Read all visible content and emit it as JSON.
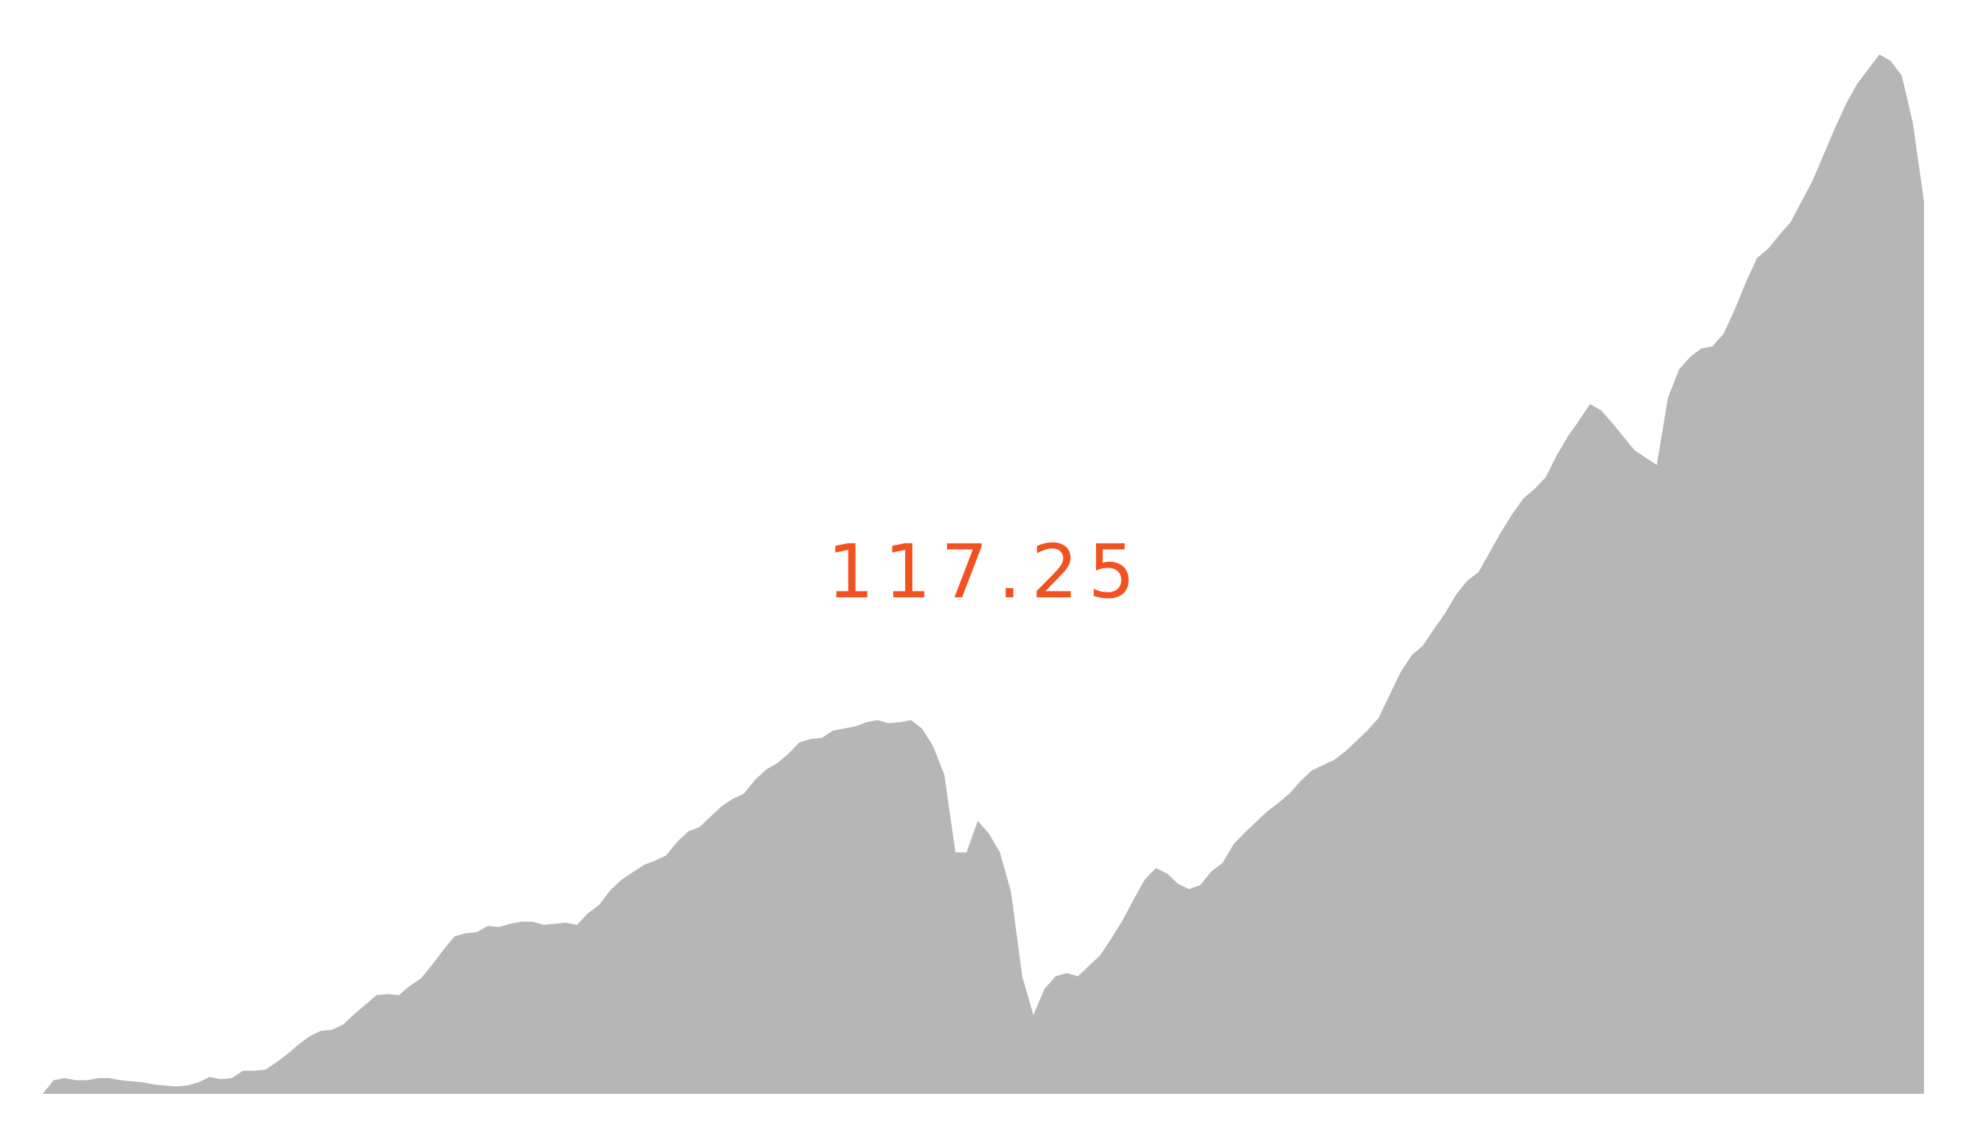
{
  "chart_data": {
    "type": "area",
    "title": "",
    "xlabel": "",
    "ylabel": "",
    "grid": false,
    "legend": "none",
    "fill_color": "#b7b6b6",
    "label_color": "#f1521f",
    "ylim": [
      0,
      100
    ],
    "current_value_label": "117.25",
    "series": [
      {
        "values": [
          0,
          1.3,
          1.5,
          1.3,
          1.3,
          1.5,
          1.5,
          1.3,
          1.2,
          1.1,
          0.9,
          0.8,
          0.7,
          0.8,
          1.1,
          1.6,
          1.4,
          1.5,
          2.2,
          2.2,
          2.3,
          3.0,
          3.8,
          4.7,
          5.5,
          6.0,
          6.1,
          6.6,
          7.6,
          8.5,
          9.4,
          9.5,
          9.4,
          10.3,
          11.0,
          12.3,
          13.7,
          15.0,
          15.3,
          15.4,
          16.0,
          15.9,
          16.2,
          16.4,
          16.4,
          16.1,
          16.2,
          16.3,
          16.1,
          17.2,
          18.0,
          19.4,
          20.4,
          21.1,
          21.8,
          22.2,
          22.7,
          24.0,
          25.0,
          25.4,
          26.4,
          27.4,
          28.1,
          28.6,
          29.9,
          30.9,
          31.5,
          32.4,
          33.5,
          33.8,
          33.9,
          34.6,
          34.8,
          35.0,
          35.4,
          35.6,
          35.3,
          35.4,
          35.6,
          34.8,
          33.1,
          30.4,
          23.0,
          23.0,
          26.0,
          24.8,
          23.0,
          19.2,
          11.2,
          7.5,
          10.0,
          11.2,
          11.5,
          11.2,
          12.2,
          13.2,
          14.8,
          16.5,
          18.5,
          20.4,
          21.5,
          21.0,
          20.0,
          19.5,
          19.9,
          21.2,
          22.0,
          23.8,
          24.9,
          25.9,
          26.9,
          27.7,
          28.6,
          29.8,
          30.8,
          31.3,
          31.8,
          32.6,
          33.6,
          34.6,
          35.8,
          38.0,
          40.2,
          41.8,
          42.7,
          44.3,
          45.8,
          47.6,
          48.9,
          49.7,
          51.6,
          53.5,
          55.2,
          56.7,
          57.6,
          58.7,
          60.8,
          62.6,
          64.1,
          65.7,
          65.1,
          63.9,
          62.6,
          61.3,
          60.6,
          59.9,
          66.3,
          69.0,
          70.2,
          71.0,
          71.2,
          72.4,
          74.7,
          77.3,
          79.6,
          80.5,
          81.8,
          83.0,
          85.0,
          87.0,
          89.5,
          92.0,
          94.3,
          96.2,
          97.6,
          99.0,
          98.4,
          97.0,
          92.5,
          85.0
        ]
      }
    ]
  }
}
